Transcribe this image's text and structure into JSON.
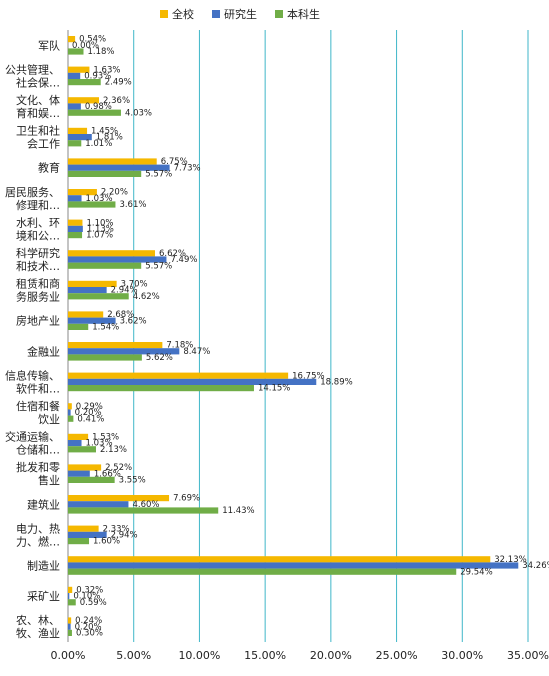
{
  "chart_data": {
    "type": "bar",
    "orientation": "horizontal",
    "categories": [
      [
        "军队"
      ],
      [
        "公共管理、",
        "社会保…"
      ],
      [
        "文化、体",
        "育和娱…"
      ],
      [
        "卫生和社",
        "会工作"
      ],
      [
        "教育"
      ],
      [
        "居民服务、",
        "修理和…"
      ],
      [
        "水利、环",
        "境和公…"
      ],
      [
        "科学研究",
        "和技术…"
      ],
      [
        "租赁和商",
        "务服务业"
      ],
      [
        "房地产业"
      ],
      [
        "金融业"
      ],
      [
        "信息传输、",
        "软件和…"
      ],
      [
        "住宿和餐",
        "饮业"
      ],
      [
        "交通运输、",
        "仓储和…"
      ],
      [
        "批发和零",
        "售业"
      ],
      [
        "建筑业"
      ],
      [
        "电力、热",
        "力、燃…"
      ],
      [
        "制造业"
      ],
      [
        "采矿业"
      ],
      [
        "农、林、",
        "牧、渔业"
      ]
    ],
    "series": [
      {
        "name": "全校",
        "color": "#F5B800",
        "values": [
          0.54,
          1.63,
          2.36,
          1.45,
          6.75,
          2.2,
          1.1,
          6.62,
          3.7,
          2.68,
          7.18,
          16.75,
          0.29,
          1.53,
          2.52,
          7.69,
          2.33,
          32.13,
          0.32,
          0.24
        ],
        "labels": [
          "0.54%",
          "1.63%",
          "2.36%",
          "1.45%",
          "6.75%",
          "2.20%",
          "1.10%",
          "6.62%",
          "3.70%",
          "2.68%",
          "7.18%",
          "16.75%",
          "0.29%",
          "1.53%",
          "2.52%",
          "7.69%",
          "2.33%",
          "32.13%",
          "0.32%",
          "0.24%"
        ]
      },
      {
        "name": "研究生",
        "color": "#4472C4",
        "values": [
          0.0,
          0.93,
          0.98,
          1.81,
          7.73,
          1.03,
          1.13,
          7.49,
          2.94,
          3.62,
          8.47,
          18.89,
          0.2,
          1.03,
          1.66,
          4.6,
          2.94,
          34.26,
          0.1,
          0.2
        ],
        "labels": [
          "0.00%",
          "0.93%",
          "0.98%",
          "1.81%",
          "7.73%",
          "1.03%",
          "1.13%",
          "7.49%",
          "2.94%",
          "3.62%",
          "8.47%",
          "18.89%",
          "0.20%",
          "1.03%",
          "1.66%",
          "4.60%",
          "2.94%",
          "34.26%",
          "0.10%",
          "0.20%"
        ]
      },
      {
        "name": "本科生",
        "color": "#70AD47",
        "values": [
          1.18,
          2.49,
          4.03,
          1.01,
          5.57,
          3.61,
          1.07,
          5.57,
          4.62,
          1.54,
          5.62,
          14.15,
          0.41,
          2.13,
          3.55,
          11.43,
          1.6,
          29.54,
          0.59,
          0.3
        ],
        "labels": [
          "1.18%",
          "2.49%",
          "4.03%",
          "1.01%",
          "5.57%",
          "3.61%",
          "1.07%",
          "5.57%",
          "4.62%",
          "1.54%",
          "5.62%",
          "14.15%",
          "0.41%",
          "2.13%",
          "3.55%",
          "11.43%",
          "1.60%",
          "29.54%",
          "0.59%",
          "0.30%"
        ]
      }
    ],
    "x_ticks": [
      "0.00%",
      "5.00%",
      "10.00%",
      "15.00%",
      "20.00%",
      "25.00%",
      "30.00%",
      "35.00%"
    ],
    "xlim": [
      0,
      35
    ],
    "grid": true,
    "grid_color": "#3FB6C8",
    "legend_position": "top"
  }
}
